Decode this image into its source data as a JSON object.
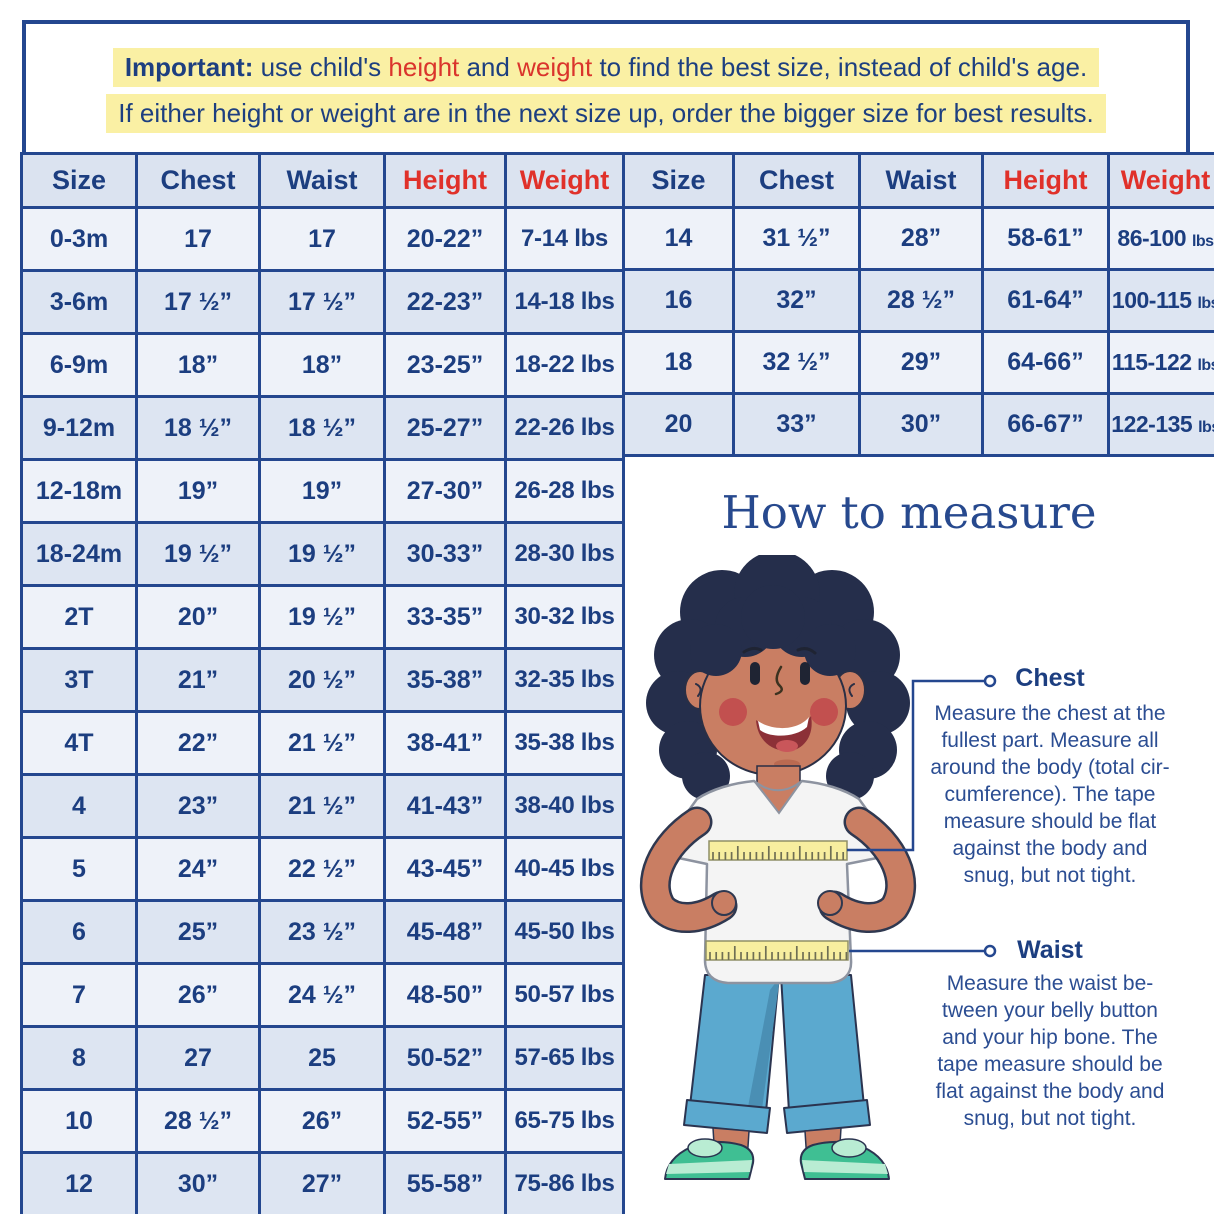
{
  "colors": {
    "border_navy": "#24478f",
    "text_navy": "#1c3e80",
    "accent_red": "#e0312a",
    "highlight_yellow": "#faf0a4",
    "row_light": "#eef2f9",
    "row_dark": "#dde5f2",
    "skin": "#c97e63",
    "hair": "#252e4b",
    "shirt": "#f4f4f4",
    "pants": "#5ba9cf",
    "shoes_green": "#3fbf93",
    "tape_yellow": "#f7ee9f"
  },
  "notice": {
    "line1_bold": "Important:",
    "line1_seg1": " use child's ",
    "line1_height": "height",
    "line1_seg2": " and ",
    "line1_weight": "weight",
    "line1_seg3": " to find the best size, instead of child's age.",
    "line2": "If either height or weight are in the next size up, order the bigger size for best results."
  },
  "baby_table": {
    "headers": [
      {
        "label": "Size",
        "color": "navy"
      },
      {
        "label": "Chest",
        "color": "navy"
      },
      {
        "label": "Waist",
        "color": "navy"
      },
      {
        "label": "Height",
        "color": "red"
      },
      {
        "label": "Weight",
        "color": "red"
      }
    ],
    "rows": [
      [
        "0-3m",
        "17",
        "17",
        "20-22”",
        "7-14 lbs"
      ],
      [
        "3-6m",
        "17 ½”",
        "17 ½”",
        "22-23”",
        "14-18 lbs"
      ],
      [
        "6-9m",
        "18”",
        "18”",
        "23-25”",
        "18-22 lbs"
      ],
      [
        "9-12m",
        "18 ½”",
        "18 ½”",
        "25-27”",
        "22-26 lbs"
      ],
      [
        "12-18m",
        "19”",
        "19”",
        "27-30”",
        "26-28 lbs"
      ],
      [
        "18-24m",
        "19 ½”",
        "19 ½”",
        "30-33”",
        "28-30 lbs"
      ],
      [
        "2T",
        "20”",
        "19 ½”",
        "33-35”",
        "30-32 lbs"
      ],
      [
        "3T",
        "21”",
        "20 ½”",
        "35-38”",
        "32-35 lbs"
      ],
      [
        "4T",
        "22”",
        "21 ½”",
        "38-41”",
        "35-38 lbs"
      ],
      [
        "4",
        "23”",
        "21 ½”",
        "41-43”",
        "38-40 lbs"
      ],
      [
        "5",
        "24”",
        "22 ½”",
        "43-45”",
        "40-45 lbs"
      ],
      [
        "6",
        "25”",
        "23 ½”",
        "45-48”",
        "45-50 lbs"
      ],
      [
        "7",
        "26”",
        "24 ½”",
        "48-50”",
        "50-57 lbs"
      ],
      [
        "8",
        "27",
        "25",
        "50-52”",
        "57-65 lbs"
      ],
      [
        "10",
        "28 ½”",
        "26”",
        "52-55”",
        "65-75 lbs"
      ],
      [
        "12",
        "30”",
        "27”",
        "55-58”",
        "75-86 lbs"
      ]
    ]
  },
  "bigkid_table": {
    "headers": [
      {
        "label": "Size",
        "color": "navy"
      },
      {
        "label": "Chest",
        "color": "navy"
      },
      {
        "label": "Waist",
        "color": "navy"
      },
      {
        "label": "Height",
        "color": "red"
      },
      {
        "label": "Weight",
        "color": "red"
      }
    ],
    "rows": [
      [
        "14",
        "31 ½”",
        "28”",
        "58-61”",
        {
          "t": "86-100",
          "s": "lbs"
        }
      ],
      [
        "16",
        "32”",
        "28 ½”",
        "61-64”",
        {
          "t": "100-115",
          "s": "lbs"
        }
      ],
      [
        "18",
        "32 ½”",
        "29”",
        "64-66”",
        {
          "t": "115-122",
          "s": "lbs"
        }
      ],
      [
        "20",
        "33”",
        "30”",
        "66-67”",
        {
          "t": "122-135",
          "s": "lbs"
        }
      ]
    ]
  },
  "measure": {
    "title": "How to measure",
    "chest_label": "Chest",
    "chest_text": "Measure the chest at the fullest part. Measure all around the body (total cir-cumference). The tape measure should be flat against the body and snug, but not tight.",
    "waist_label": "Waist",
    "waist_text": "Measure the waist be-tween your belly button and your hip bone. The tape measure should be flat against the body and snug, but not tight."
  }
}
